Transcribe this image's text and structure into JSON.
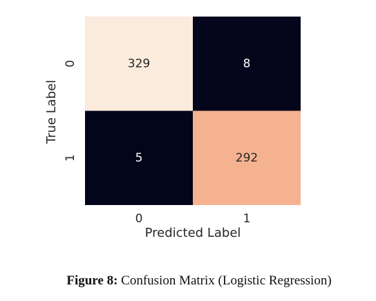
{
  "chart_data": {
    "type": "heatmap",
    "title": "",
    "xlabel": "Predicted Label",
    "ylabel": "True Label",
    "x_categories": [
      "0",
      "1"
    ],
    "y_categories": [
      "0",
      "1"
    ],
    "values": [
      [
        329,
        8
      ],
      [
        5,
        292
      ]
    ],
    "colormap": "rocket",
    "colorbar": false,
    "grid": false
  },
  "caption": {
    "label": "Figure 8:",
    "text": " Confusion Matrix (Logistic Regression)"
  }
}
